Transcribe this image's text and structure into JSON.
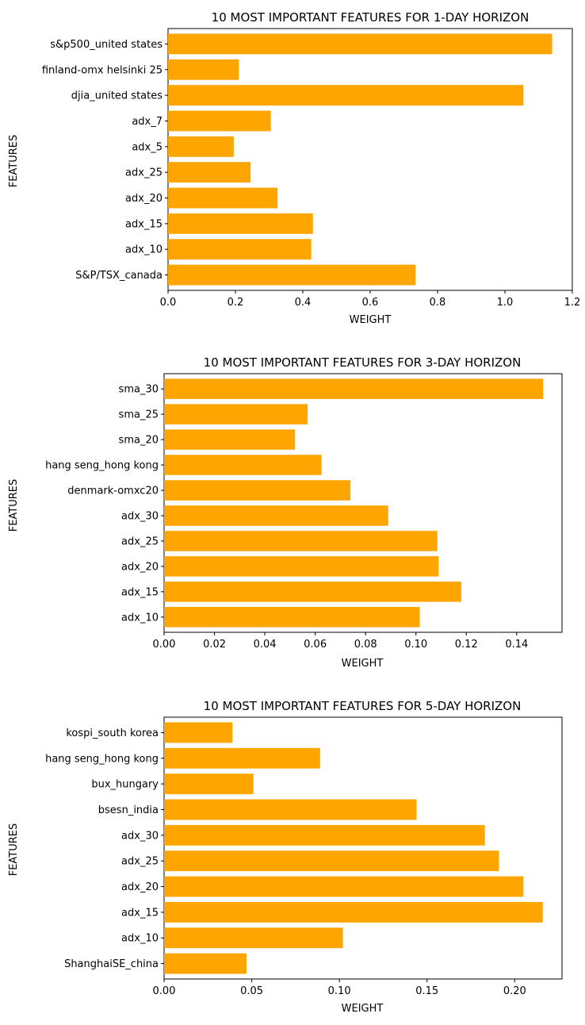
{
  "bar_color": "#FFA500",
  "chart_data": [
    {
      "type": "bar",
      "orientation": "horizontal",
      "title": "10 MOST IMPORTANT FEATURES FOR 1-DAY HORIZON",
      "xlabel": "WEIGHT",
      "ylabel": "FEATURES",
      "xlim": [
        0,
        1.2
      ],
      "xticks": [
        "0.0",
        "0.2",
        "0.4",
        "0.6",
        "0.8",
        "1.0",
        "1.2"
      ],
      "grid": false,
      "categories": [
        "s&p500_united states",
        "finland-omx helsinki 25",
        "djia_united states",
        "adx_7",
        "adx_5",
        "adx_25",
        "adx_20",
        "adx_15",
        "adx_10",
        "S&P/TSX_canada"
      ],
      "values": [
        1.14,
        0.21,
        1.055,
        0.305,
        0.195,
        0.245,
        0.325,
        0.43,
        0.425,
        0.735
      ]
    },
    {
      "type": "bar",
      "orientation": "horizontal",
      "title": "10 MOST IMPORTANT FEATURES FOR 3-DAY HORIZON",
      "xlabel": "WEIGHT",
      "ylabel": "FEATURES",
      "xlim": [
        0,
        0.158
      ],
      "xticks": [
        "0.00",
        "0.02",
        "0.04",
        "0.06",
        "0.08",
        "0.10",
        "0.12",
        "0.14"
      ],
      "grid": false,
      "categories": [
        "sma_30",
        "sma_25",
        "sma_20",
        "hang seng_hong kong",
        "denmark-omxc20",
        "adx_30",
        "adx_25",
        "adx_20",
        "adx_15",
        "adx_10"
      ],
      "values": [
        0.1505,
        0.057,
        0.052,
        0.0625,
        0.074,
        0.089,
        0.1085,
        0.109,
        0.118,
        0.1015
      ]
    },
    {
      "type": "bar",
      "orientation": "horizontal",
      "title": "10 MOST IMPORTANT FEATURES FOR 5-DAY HORIZON",
      "xlabel": "WEIGHT",
      "ylabel": "FEATURES",
      "xlim": [
        0,
        0.227
      ],
      "xticks": [
        "0.00",
        "0.05",
        "0.10",
        "0.15",
        "0.20"
      ],
      "grid": false,
      "categories": [
        "kospi_south korea",
        "hang seng_hong kong",
        "bux_hungary",
        "bsesn_india",
        "adx_30",
        "adx_25",
        "adx_20",
        "adx_15",
        "adx_10",
        "ShanghaiSE_china"
      ],
      "values": [
        0.039,
        0.089,
        0.051,
        0.144,
        0.183,
        0.191,
        0.205,
        0.216,
        0.102,
        0.047
      ]
    }
  ]
}
